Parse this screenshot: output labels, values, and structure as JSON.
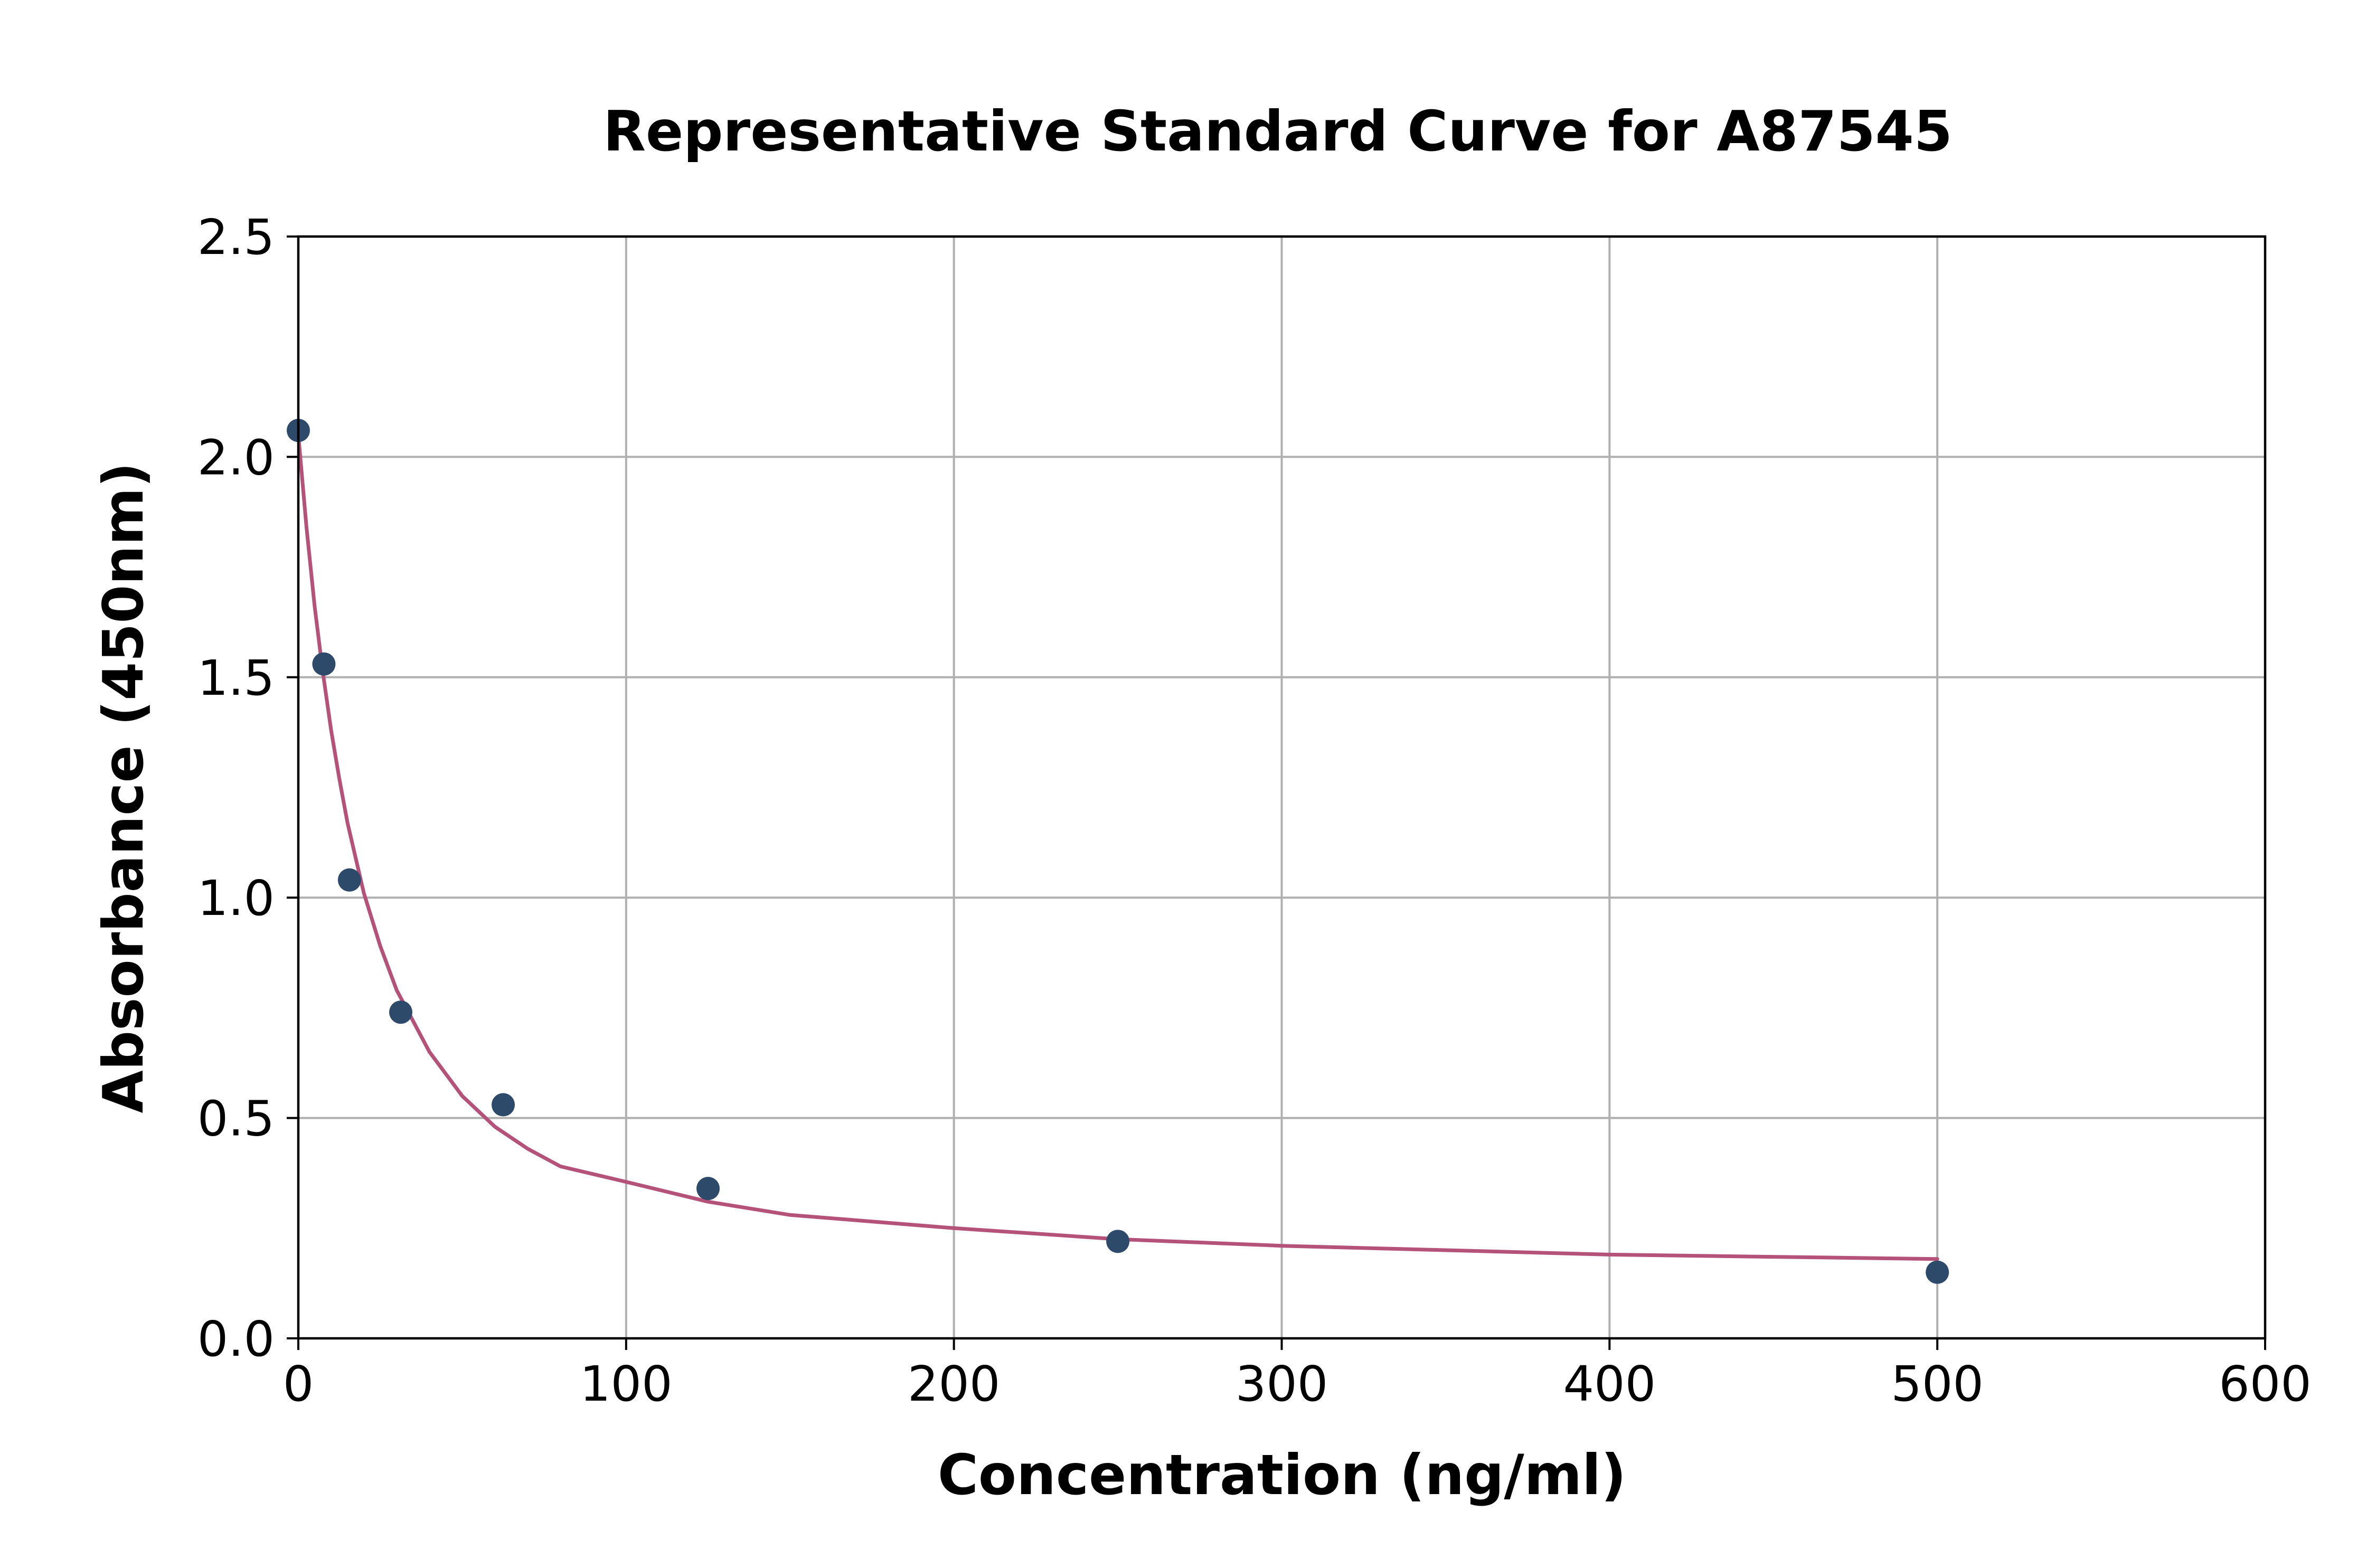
{
  "chart_data": {
    "type": "scatter",
    "title": "Representative Standard Curve for A87545",
    "xlabel": "Concentration (ng/ml)",
    "ylabel": "Absorbance (450nm)",
    "xlim": [
      0,
      600
    ],
    "ylim": [
      0,
      2.5
    ],
    "xticks": [
      0,
      100,
      200,
      300,
      400,
      500,
      600
    ],
    "yticks": [
      0.0,
      0.5,
      1.0,
      1.5,
      2.0,
      2.5
    ],
    "xtick_labels": [
      "0",
      "100",
      "200",
      "300",
      "400",
      "500",
      "600"
    ],
    "ytick_labels": [
      "0.0",
      "0.5",
      "1.0",
      "1.5",
      "2.0",
      "2.5"
    ],
    "grid": true,
    "series": [
      {
        "kind": "points",
        "color": "#2d4a6b",
        "x": [
          0,
          7.8,
          15.6,
          31.25,
          62.5,
          125,
          250,
          500
        ],
        "y": [
          2.06,
          1.53,
          1.04,
          0.74,
          0.53,
          0.34,
          0.22,
          0.15
        ]
      },
      {
        "kind": "fit-curve",
        "color": "#b5527a",
        "x": [
          0,
          2.5,
          5,
          7.5,
          10,
          12.5,
          15,
          17.5,
          20,
          25,
          30,
          35,
          40,
          50,
          60,
          70,
          80,
          100,
          125,
          150,
          175,
          200,
          250,
          300,
          350,
          400,
          450,
          500
        ],
        "y": [
          2.05,
          1.84,
          1.66,
          1.51,
          1.38,
          1.27,
          1.17,
          1.09,
          1.01,
          0.89,
          0.79,
          0.72,
          0.65,
          0.55,
          0.48,
          0.43,
          0.39,
          0.355,
          0.31,
          0.28,
          0.265,
          0.25,
          0.225,
          0.21,
          0.2,
          0.19,
          0.185,
          0.18
        ]
      }
    ]
  }
}
